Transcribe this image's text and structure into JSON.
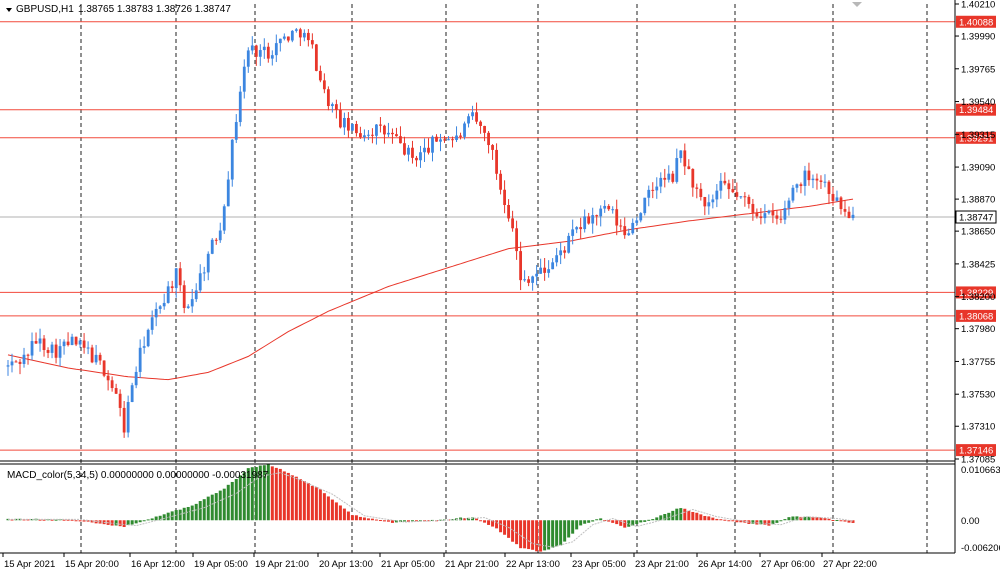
{
  "header": {
    "symbol": "GBPUSD,H1",
    "ohlc": "1.38765 1.38783 1.38726 1.38747"
  },
  "macd_header": "MACD_color(5,34,5) 0.00000000 0.00000000 -0.00031987",
  "colors": {
    "bull": "#3c86e0",
    "bear": "#e8362a",
    "ma": "#e8362a",
    "level_line": "#f24a3c",
    "label_bg": "#e8362a",
    "hist_up": "#2f8a2f",
    "hist_down": "#e8362a",
    "grid": "#222222"
  },
  "chart_data": [
    {
      "type": "candlestick",
      "title": "GBPUSD,H1",
      "y_axis_labels": [
        "1.40210",
        "1.39990",
        "1.39765",
        "1.39540",
        "1.39315",
        "1.39090",
        "1.38870",
        "1.38650",
        "1.38425",
        "1.38200",
        "1.37980",
        "1.37755",
        "1.37530",
        "1.37310",
        "1.37085"
      ],
      "ylim": [
        1.37085,
        1.4021
      ],
      "horizontal_levels": [
        "1.40088",
        "1.39484",
        "1.39291",
        "1.38229",
        "1.38068",
        "1.37146"
      ],
      "last_price": "1.38747",
      "x_axis_labels": [
        "15 Apr 2021",
        "15 Apr 20:00",
        "16 Apr 12:00",
        "19 Apr 05:00",
        "19 Apr 21:00",
        "20 Apr 13:00",
        "21 Apr 05:00",
        "21 Apr 21:00",
        "22 Apr 13:00",
        "23 Apr 05:00",
        "23 Apr 21:00",
        "26 Apr 14:00",
        "27 Apr 06:00",
        "27 Apr 22:00"
      ],
      "bars": 212,
      "anchors": [
        [
          0,
          1.3772
        ],
        [
          4,
          1.3778
        ],
        [
          7,
          1.379
        ],
        [
          12,
          1.3783
        ],
        [
          16,
          1.3789
        ],
        [
          20,
          1.3782
        ],
        [
          24,
          1.377
        ],
        [
          27,
          1.3752
        ],
        [
          29,
          1.373
        ],
        [
          31,
          1.376
        ],
        [
          34,
          1.379
        ],
        [
          38,
          1.3815
        ],
        [
          42,
          1.3835
        ],
        [
          44,
          1.3812
        ],
        [
          46,
          1.382
        ],
        [
          50,
          1.3848
        ],
        [
          53,
          1.3868
        ],
        [
          55,
          1.3905
        ],
        [
          58,
          1.3962
        ],
        [
          60,
          1.399
        ],
        [
          65,
          1.3988
        ],
        [
          69,
          1.3998
        ],
        [
          73,
          1.4003
        ],
        [
          76,
          1.399
        ],
        [
          79,
          1.396
        ],
        [
          83,
          1.394
        ],
        [
          87,
          1.3932
        ],
        [
          92,
          1.3935
        ],
        [
          96,
          1.393
        ],
        [
          101,
          1.3915
        ],
        [
          104,
          1.392
        ],
        [
          108,
          1.393
        ],
        [
          112,
          1.3928
        ],
        [
          116,
          1.3943
        ],
        [
          120,
          1.3928
        ],
        [
          123,
          1.3895
        ],
        [
          126,
          1.387
        ],
        [
          128,
          1.383
        ],
        [
          130,
          1.3834
        ],
        [
          134,
          1.3838
        ],
        [
          138,
          1.385
        ],
        [
          142,
          1.3866
        ],
        [
          146,
          1.3875
        ],
        [
          150,
          1.388
        ],
        [
          154,
          1.3862
        ],
        [
          158,
          1.388
        ],
        [
          162,
          1.3898
        ],
        [
          166,
          1.3902
        ],
        [
          168,
          1.392
        ],
        [
          170,
          1.3905
        ],
        [
          174,
          1.3878
        ],
        [
          178,
          1.3895
        ],
        [
          182,
          1.389
        ],
        [
          186,
          1.388
        ],
        [
          190,
          1.3875
        ],
        [
          193,
          1.3872
        ],
        [
          196,
          1.3895
        ],
        [
          200,
          1.3905
        ],
        [
          204,
          1.3898
        ],
        [
          207,
          1.3885
        ],
        [
          209,
          1.3878
        ],
        [
          211,
          1.38747
        ]
      ],
      "moving_average": [
        [
          0,
          1.378
        ],
        [
          15,
          1.3771
        ],
        [
          30,
          1.3765
        ],
        [
          40,
          1.3763
        ],
        [
          50,
          1.3768
        ],
        [
          60,
          1.3779
        ],
        [
          70,
          1.3796
        ],
        [
          80,
          1.381
        ],
        [
          95,
          1.3827
        ],
        [
          110,
          1.384
        ],
        [
          125,
          1.3853
        ],
        [
          140,
          1.3858
        ],
        [
          155,
          1.3866
        ],
        [
          170,
          1.3872
        ],
        [
          185,
          1.3877
        ],
        [
          200,
          1.3882
        ],
        [
          211,
          1.3887
        ]
      ]
    },
    {
      "type": "bar",
      "title": "MACD_color(5,34,5)",
      "y_axis_labels": [
        "0.0106638",
        "0.00",
        "-0.0062060"
      ],
      "ylim": [
        -0.006206,
        0.0106638
      ],
      "anchors": [
        [
          0,
          0.0002
        ],
        [
          15,
          0.0002
        ],
        [
          24,
          -0.0008
        ],
        [
          29,
          -0.0012
        ],
        [
          36,
          0.0004
        ],
        [
          46,
          0.0028
        ],
        [
          54,
          0.006
        ],
        [
          60,
          0.0098
        ],
        [
          65,
          0.0106
        ],
        [
          70,
          0.009
        ],
        [
          78,
          0.0058
        ],
        [
          86,
          0.001
        ],
        [
          96,
          -0.0004
        ],
        [
          106,
          0.0
        ],
        [
          116,
          0.0006
        ],
        [
          122,
          -0.0016
        ],
        [
          128,
          -0.0052
        ],
        [
          133,
          -0.006
        ],
        [
          138,
          -0.0048
        ],
        [
          143,
          -0.001
        ],
        [
          148,
          0.0004
        ],
        [
          154,
          -0.0014
        ],
        [
          160,
          0.0
        ],
        [
          168,
          0.0024
        ],
        [
          174,
          0.0008
        ],
        [
          182,
          -0.0004
        ],
        [
          190,
          -0.001
        ],
        [
          196,
          0.0008
        ],
        [
          204,
          0.0004
        ],
        [
          211,
          -0.0006
        ]
      ]
    }
  ]
}
